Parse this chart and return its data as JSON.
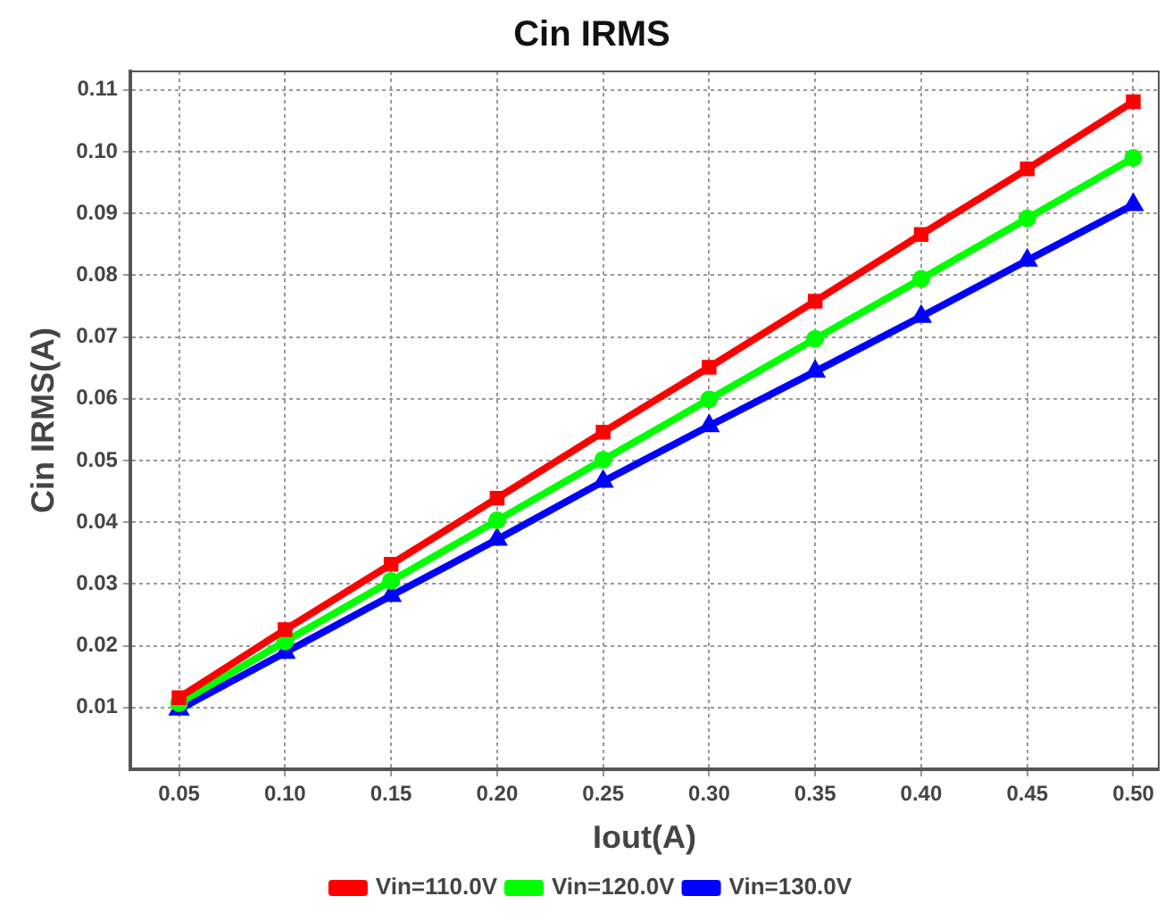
{
  "chart_data": {
    "type": "line",
    "title": "Cin IRMS",
    "xlabel": "Iout(A)",
    "ylabel": "Cin IRMS(A)",
    "x": [
      0.05,
      0.1,
      0.15,
      0.2,
      0.25,
      0.3,
      0.35,
      0.4,
      0.45,
      0.5
    ],
    "series": [
      {
        "name": "Vin=110.0V",
        "color": "#ff0000",
        "marker": "square",
        "values": [
          0.0116,
          0.0226,
          0.0332,
          0.0439,
          0.0546,
          0.0651,
          0.0758,
          0.0866,
          0.0972,
          0.1081
        ]
      },
      {
        "name": "Vin=120.0V",
        "color": "#00ff00",
        "marker": "circle",
        "values": [
          0.0107,
          0.0207,
          0.0305,
          0.0403,
          0.0501,
          0.0599,
          0.0697,
          0.0794,
          0.0892,
          0.099
        ]
      },
      {
        "name": "Vin=130.0V",
        "color": "#0000ff",
        "marker": "triangle",
        "values": [
          0.0097,
          0.0189,
          0.0281,
          0.0372,
          0.0466,
          0.0556,
          0.0644,
          0.0733,
          0.0824,
          0.0914
        ]
      }
    ],
    "xlim": [
      0.027,
      0.512
    ],
    "xticks": [
      {
        "value": 0.05,
        "label": "0.05"
      },
      {
        "value": 0.1,
        "label": "0.10"
      },
      {
        "value": 0.15,
        "label": "0.15"
      },
      {
        "value": 0.2,
        "label": "0.20"
      },
      {
        "value": 0.25,
        "label": "0.25"
      },
      {
        "value": 0.3,
        "label": "0.30"
      },
      {
        "value": 0.35,
        "label": "0.35"
      },
      {
        "value": 0.4,
        "label": "0.40"
      },
      {
        "value": 0.45,
        "label": "0.45"
      },
      {
        "value": 0.5,
        "label": "0.50"
      }
    ],
    "ylim": [
      0,
      0.113
    ],
    "yticks": [
      0.01,
      0.02,
      0.03,
      0.04,
      0.05,
      0.06,
      0.07,
      0.08,
      0.09,
      {
        "value": 0.1,
        "label": "0.10"
      },
      0.11
    ],
    "grid": true,
    "legend": "bottom",
    "line_style": "solid"
  }
}
